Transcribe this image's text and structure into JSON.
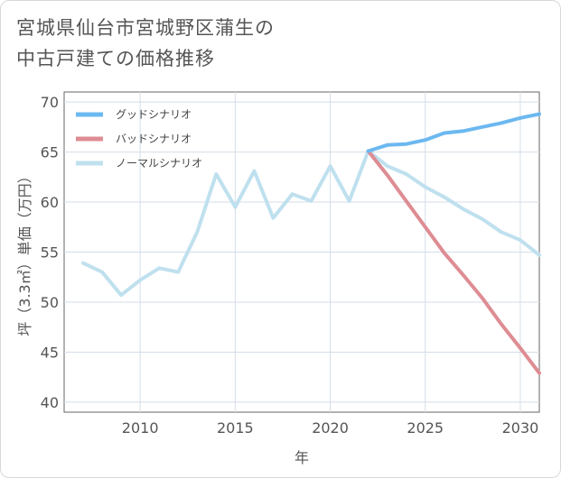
{
  "title": {
    "line1": "宮城県仙台市宮城野区蒲生の",
    "line2": "中古戸建ての価格推移"
  },
  "chart_data": {
    "type": "line",
    "xlabel": "年",
    "ylabel": "坪（3.3㎡）単価（万円）",
    "xlim": [
      2006,
      2031
    ],
    "ylim": [
      39,
      71
    ],
    "xticks": [
      2010,
      2015,
      2020,
      2025,
      2030
    ],
    "yticks": [
      40,
      45,
      50,
      55,
      60,
      65,
      70
    ],
    "grid": true,
    "legend_position": "top-left",
    "series": [
      {
        "name": "グッドシナリオ",
        "color": "#6cb8f0",
        "x": [
          2022,
          2023,
          2024,
          2025,
          2026,
          2027,
          2028,
          2029,
          2030,
          2031
        ],
        "y": [
          65.1,
          65.7,
          65.8,
          66.2,
          66.9,
          67.1,
          67.5,
          67.9,
          68.4,
          68.8
        ]
      },
      {
        "name": "バッドシナリオ",
        "color": "#de8c93",
        "x": [
          2022,
          2023,
          2024,
          2025,
          2026,
          2027,
          2028,
          2029,
          2030,
          2031
        ],
        "y": [
          65.1,
          62.7,
          60.1,
          57.5,
          54.9,
          52.7,
          50.4,
          47.8,
          45.4,
          42.9
        ]
      },
      {
        "name": "ノーマルシナリオ",
        "color": "#bfe0ee",
        "x": [
          2007,
          2008,
          2009,
          2010,
          2011,
          2012,
          2013,
          2014,
          2015,
          2016,
          2017,
          2018,
          2019,
          2020,
          2021,
          2022,
          2023,
          2024,
          2025,
          2026,
          2027,
          2028,
          2029,
          2030,
          2031
        ],
        "y": [
          53.9,
          53.0,
          50.7,
          52.2,
          53.4,
          53.0,
          57.0,
          62.8,
          59.5,
          63.1,
          58.4,
          60.8,
          60.1,
          63.6,
          60.1,
          65.1,
          63.6,
          62.8,
          61.5,
          60.5,
          59.3,
          58.3,
          57.0,
          56.2,
          54.7
        ]
      }
    ]
  }
}
